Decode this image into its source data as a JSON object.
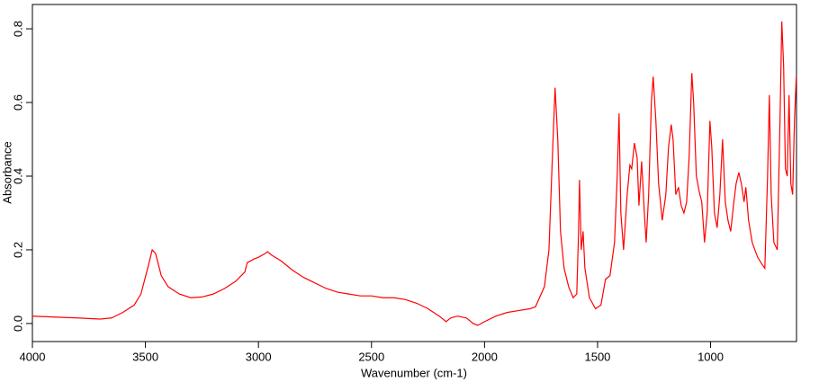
{
  "chart_data": {
    "type": "line",
    "xlabel": "Wavenumber (cm-1)",
    "ylabel": "Absorbance",
    "xlim": [
      4000,
      620
    ],
    "ylim": [
      -0.049,
      0.866
    ],
    "xticks": [
      4000,
      3500,
      3000,
      2500,
      2000,
      1500,
      1000
    ],
    "yticks": [
      {
        "value": 0,
        "label": "0.0"
      },
      0.2,
      0.4,
      0.6,
      0.8
    ],
    "x": [
      4000,
      3800,
      3700,
      3650,
      3600,
      3550,
      3520,
      3490,
      3470,
      3455,
      3430,
      3400,
      3350,
      3300,
      3250,
      3200,
      3150,
      3100,
      3060,
      3050,
      3020,
      3000,
      2970,
      2960,
      2940,
      2900,
      2850,
      2800,
      2750,
      2700,
      2650,
      2600,
      2550,
      2500,
      2450,
      2400,
      2350,
      2300,
      2250,
      2200,
      2170,
      2150,
      2120,
      2080,
      2050,
      2030,
      2000,
      1950,
      1900,
      1850,
      1800,
      1775,
      1735,
      1715,
      1700,
      1688,
      1676,
      1664,
      1648,
      1628,
      1608,
      1592,
      1584,
      1580,
      1572,
      1564,
      1556,
      1536,
      1509,
      1485,
      1465,
      1445,
      1425,
      1413,
      1405,
      1397,
      1385,
      1369,
      1357,
      1349,
      1337,
      1325,
      1317,
      1305,
      1293,
      1285,
      1274,
      1262,
      1254,
      1242,
      1230,
      1214,
      1198,
      1186,
      1174,
      1166,
      1154,
      1142,
      1130,
      1118,
      1106,
      1095,
      1083,
      1075,
      1063,
      1051,
      1039,
      1027,
      1015,
      1003,
      995,
      983,
      971,
      959,
      947,
      935,
      923,
      911,
      899,
      887,
      875,
      864,
      852,
      844,
      832,
      816,
      792,
      772,
      760,
      748,
      740,
      732,
      720,
      705,
      693,
      685,
      677,
      669,
      661,
      653,
      645,
      637,
      629,
      621
    ],
    "series": [
      {
        "color": "#ff0000",
        "values": [
          0.02,
          0.015,
          0.012,
          0.015,
          0.03,
          0.05,
          0.08,
          0.15,
          0.2,
          0.19,
          0.13,
          0.1,
          0.08,
          0.07,
          0.072,
          0.08,
          0.095,
          0.115,
          0.14,
          0.165,
          0.175,
          0.18,
          0.19,
          0.195,
          0.185,
          0.17,
          0.145,
          0.125,
          0.11,
          0.095,
          0.085,
          0.08,
          0.075,
          0.075,
          0.07,
          0.07,
          0.065,
          0.055,
          0.04,
          0.02,
          0.005,
          0.015,
          0.02,
          0.015,
          0.0,
          -0.005,
          0.005,
          0.02,
          0.03,
          0.035,
          0.04,
          0.045,
          0.1,
          0.2,
          0.45,
          0.64,
          0.5,
          0.25,
          0.15,
          0.1,
          0.07,
          0.08,
          0.25,
          0.39,
          0.2,
          0.25,
          0.15,
          0.07,
          0.04,
          0.05,
          0.12,
          0.13,
          0.22,
          0.4,
          0.57,
          0.3,
          0.2,
          0.35,
          0.43,
          0.42,
          0.49,
          0.45,
          0.32,
          0.44,
          0.3,
          0.22,
          0.35,
          0.6,
          0.67,
          0.55,
          0.38,
          0.28,
          0.35,
          0.48,
          0.54,
          0.5,
          0.35,
          0.37,
          0.32,
          0.3,
          0.33,
          0.45,
          0.68,
          0.6,
          0.4,
          0.36,
          0.33,
          0.22,
          0.3,
          0.55,
          0.48,
          0.3,
          0.26,
          0.35,
          0.5,
          0.33,
          0.28,
          0.25,
          0.32,
          0.38,
          0.41,
          0.38,
          0.33,
          0.37,
          0.28,
          0.22,
          0.18,
          0.16,
          0.15,
          0.4,
          0.62,
          0.35,
          0.22,
          0.2,
          0.55,
          0.82,
          0.7,
          0.42,
          0.4,
          0.62,
          0.38,
          0.35,
          0.55,
          0.67
        ]
      }
    ]
  }
}
